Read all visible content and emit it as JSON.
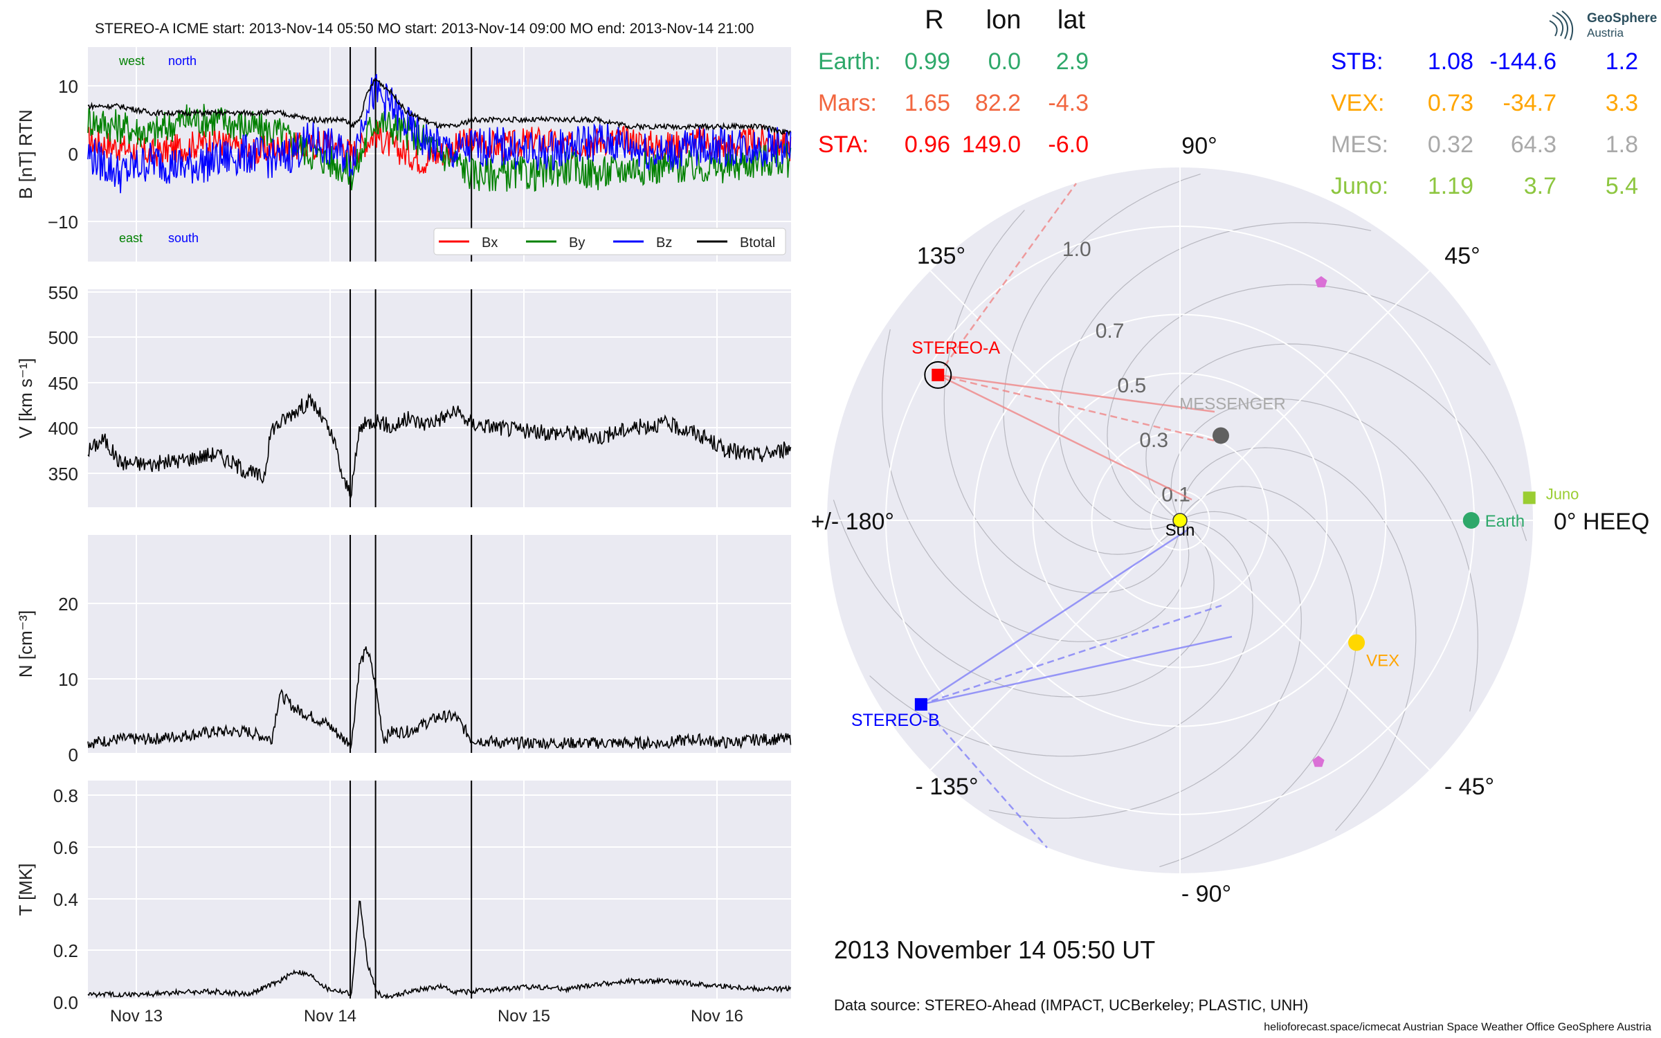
{
  "header": {
    "title": "STEREO-A    ICME start: 2013-Nov-14 05:50   MO start: 2013-Nov-14 09:00   MO end: 2013-Nov-14 21:00"
  },
  "panels": {
    "b": {
      "ylabel": "B [nT] RTN",
      "yticks": [
        "10",
        "0",
        "−10"
      ],
      "annotations": {
        "west": "west",
        "north": "north",
        "east": "east",
        "south": "south"
      },
      "legend": [
        "Bx",
        "By",
        "Bz",
        "Btotal"
      ]
    },
    "v": {
      "ylabel": "V [km s⁻¹]",
      "yticks": [
        "550",
        "500",
        "450",
        "400",
        "350"
      ]
    },
    "n": {
      "ylabel": "N [cm⁻³]",
      "yticks": [
        "20",
        "10",
        "0"
      ]
    },
    "t": {
      "ylabel": "T [MK]",
      "yticks": [
        "0.8",
        "0.6",
        "0.4",
        "0.2",
        "0.0"
      ]
    },
    "xticks": [
      "Nov 13",
      "Nov 14",
      "Nov 15",
      "Nov 16"
    ]
  },
  "positions": {
    "headers": [
      "R",
      "lon",
      "lat"
    ],
    "left_rows": [
      {
        "name": "Earth:",
        "r": "0.99",
        "lon": "0.0",
        "lat": "2.9",
        "color": "#2ea86a"
      },
      {
        "name": "Mars:",
        "r": "1.65",
        "lon": "82.2",
        "lat": "-4.3",
        "color": "#f2663f"
      },
      {
        "name": "STA:",
        "r": "0.96",
        "lon": "149.0",
        "lat": "-6.0",
        "color": "#ff0000"
      }
    ],
    "right_rows": [
      {
        "name": "STB:",
        "r": "1.08",
        "lon": "-144.6",
        "lat": "1.2",
        "color": "#0000ff"
      },
      {
        "name": "VEX:",
        "r": "0.73",
        "lon": "-34.7",
        "lat": "3.3",
        "color": "#ffa500"
      },
      {
        "name": "MES:",
        "r": "0.32",
        "lon": "64.3",
        "lat": "1.8",
        "color": "#a9a9a9"
      },
      {
        "name": "Juno:",
        "r": "1.19",
        "lon": "3.7",
        "lat": "5.4",
        "color": "#8dc63f"
      }
    ]
  },
  "polar": {
    "angle_labels": [
      "90°",
      "45°",
      "0° HEEQ",
      "- 45°",
      "- 90°",
      "- 135°",
      "+/- 180°",
      "135°"
    ],
    "radial_labels": [
      "0.1",
      "0.3",
      "0.5",
      "0.7",
      "1.0"
    ],
    "bodies": {
      "sun": "Sun",
      "earth": "Earth",
      "juno": "Juno",
      "vex": "VEX",
      "messenger": "MESSENGER",
      "stereo_a": "STEREO-A",
      "stereo_b": "STEREO-B"
    }
  },
  "date": "2013 November 14  05:50 UT",
  "source": "Data source: STEREO-Ahead (IMPACT, UCBerkeley; PLASTIC, UNH)",
  "footer": "helioforecast.space/icmecat   Austrian Space Weather Office   GeoSphere Austria",
  "logo": {
    "line1": "GeoSphere",
    "line2": "Austria"
  },
  "colors": {
    "bx": "#ff0000",
    "by": "#008000",
    "bz": "#0000ff",
    "btotal": "#000000",
    "panel_bg": "#eaeaf2"
  },
  "chart_data": [
    {
      "type": "line",
      "title": "STEREO-A    ICME start: 2013-Nov-14 05:50   MO start: 2013-Nov-14 09:00   MO end: 2013-Nov-14 21:00",
      "ylabel": "B [nT] RTN",
      "x_unit": "hours since 2013-Nov-12 21:00",
      "xlim": [
        0,
        88
      ],
      "ylim": [
        -16,
        16
      ],
      "event_lines": [
        "2013-Nov-14 05:50",
        "2013-Nov-14 09:00",
        "2013-Nov-14 21:00"
      ],
      "x": [
        0,
        4,
        8,
        12,
        16,
        20,
        24,
        28,
        30,
        32,
        33,
        34,
        35,
        36,
        38,
        40,
        42,
        44,
        46,
        48,
        52,
        56,
        60,
        64,
        68,
        72,
        76,
        80,
        84,
        88
      ],
      "series": [
        {
          "name": "Bx",
          "values": [
            2,
            1,
            0,
            1,
            2,
            0,
            1,
            1,
            2,
            1,
            0,
            1,
            2,
            3,
            1,
            0,
            -1,
            0,
            1,
            2,
            1,
            2,
            1,
            2,
            2,
            1,
            2,
            1,
            2,
            1
          ]
        },
        {
          "name": "By",
          "values": [
            5,
            4,
            3,
            5,
            5,
            4,
            3,
            0,
            -1,
            -2,
            -3,
            -1,
            3,
            5,
            4,
            3,
            2,
            0,
            -1,
            -3,
            -3,
            -3,
            -2,
            -3,
            -2,
            -2,
            -2,
            -2,
            -1,
            -1
          ]
        },
        {
          "name": "Bz",
          "values": [
            0,
            -3,
            -1,
            -2,
            -1,
            0,
            -1,
            2,
            1,
            0,
            -1,
            3,
            8,
            9,
            7,
            4,
            2,
            1,
            0,
            1,
            1,
            0,
            1,
            2,
            1,
            0,
            1,
            1,
            1,
            1
          ]
        },
        {
          "name": "Btotal",
          "values": [
            7,
            7,
            6,
            6,
            6,
            6,
            6,
            5,
            5,
            5,
            4,
            5,
            9,
            11,
            9,
            6,
            5,
            4,
            4,
            5,
            5,
            5,
            5,
            5,
            4,
            4,
            4,
            4,
            4,
            3
          ]
        }
      ]
    },
    {
      "type": "line",
      "ylabel": "V [km s⁻¹]",
      "ylim": [
        310,
        555
      ],
      "x": [
        0,
        2,
        4,
        8,
        12,
        16,
        20,
        22,
        23,
        24,
        26,
        28,
        30,
        31,
        32,
        33,
        34,
        36,
        38,
        40,
        42,
        44,
        46,
        48,
        52,
        56,
        60,
        64,
        68,
        72,
        76,
        80,
        84,
        88
      ],
      "series": [
        {
          "name": "V",
          "values": [
            375,
            388,
            362,
            360,
            365,
            372,
            352,
            345,
            400,
            405,
            420,
            430,
            400,
            380,
            340,
            330,
            400,
            410,
            400,
            410,
            405,
            410,
            418,
            405,
            400,
            395,
            395,
            390,
            400,
            405,
            395,
            375,
            370,
            378
          ]
        }
      ]
    },
    {
      "type": "line",
      "ylabel": "N [cm⁻³]",
      "ylim": [
        -1,
        29
      ],
      "x": [
        0,
        4,
        8,
        12,
        16,
        20,
        23,
        24,
        26,
        28,
        30,
        32,
        33,
        34,
        35,
        36,
        37,
        38,
        40,
        42,
        44,
        46,
        48,
        52,
        56,
        60,
        64,
        68,
        72,
        76,
        80,
        84,
        88
      ],
      "series": [
        {
          "name": "N",
          "values": [
            1.5,
            2,
            2,
            2.5,
            3,
            3,
            2,
            8,
            6,
            5,
            4,
            2,
            1.5,
            12,
            14,
            9,
            2,
            3,
            3,
            4,
            5,
            5,
            2,
            1.5,
            1.5,
            1.5,
            1.5,
            1.5,
            1.5,
            2,
            1.5,
            2,
            2
          ]
        }
      ]
    },
    {
      "type": "line",
      "ylabel": "T [MK]",
      "ylim": [
        -0.01,
        0.84
      ],
      "xlabel": "",
      "x": [
        0,
        4,
        8,
        12,
        16,
        20,
        24,
        26,
        28,
        30,
        32,
        33,
        34,
        35,
        36,
        37,
        38,
        40,
        42,
        44,
        46,
        48,
        52,
        56,
        60,
        64,
        68,
        72,
        76,
        80,
        84,
        88
      ],
      "series": [
        {
          "name": "T",
          "values": [
            0.03,
            0.03,
            0.03,
            0.04,
            0.04,
            0.03,
            0.08,
            0.12,
            0.1,
            0.05,
            0.04,
            0.03,
            0.4,
            0.15,
            0.05,
            0.02,
            0.02,
            0.04,
            0.05,
            0.06,
            0.04,
            0.04,
            0.05,
            0.06,
            0.05,
            0.07,
            0.08,
            0.08,
            0.07,
            0.06,
            0.05,
            0.05
          ]
        }
      ]
    },
    {
      "type": "scatter",
      "title": "",
      "projection": "polar",
      "r_ticks": [
        0.1,
        0.3,
        0.5,
        0.7,
        1.0
      ],
      "rlim": [
        0,
        1.2
      ],
      "points": [
        {
          "name": "Sun",
          "r": 0.0,
          "lon": 0.0
        },
        {
          "name": "Earth",
          "r": 0.99,
          "lon": 0.0
        },
        {
          "name": "Juno",
          "r": 1.19,
          "lon": 3.7
        },
        {
          "name": "VEX",
          "r": 0.73,
          "lon": -34.7
        },
        {
          "name": "MESSENGER",
          "r": 0.32,
          "lon": 64.3
        },
        {
          "name": "STEREO-A",
          "r": 0.96,
          "lon": 149.0
        },
        {
          "name": "STEREO-B",
          "r": 1.08,
          "lon": -144.6
        }
      ]
    }
  ]
}
